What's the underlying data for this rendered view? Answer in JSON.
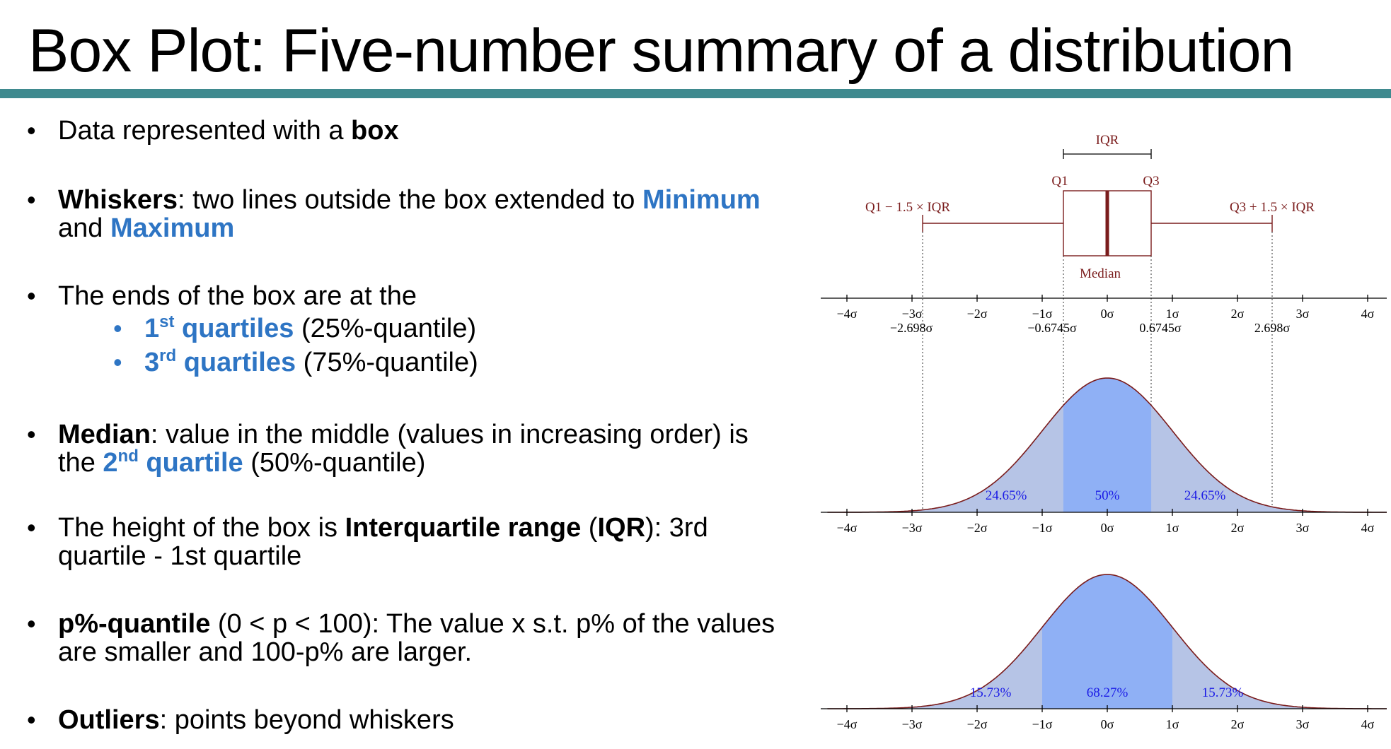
{
  "title": "Box Plot: Five-number summary of a distribution",
  "bullets": {
    "b1": {
      "pre": "Data represented with a ",
      "bold": "box"
    },
    "b2": {
      "bold": "Whiskers",
      "mid": ": two lines outside the box extended to ",
      "min": "Minimum",
      "and": "and ",
      "max": "Maximum"
    },
    "b3": {
      "text": "The ends of the box are at the",
      "sub1": {
        "n": "1",
        "sup": "st",
        "label": " quartiles",
        "rest": " (25%-quantile)"
      },
      "sub2": {
        "n": "3",
        "sup": "rd",
        "label": " quartiles",
        "rest": " (75%-quantile)"
      }
    },
    "b4": {
      "bold": "Median",
      "mid": ": value in the middle (values in increasing order) is",
      "the": "the ",
      "n": "2",
      "sup": "nd",
      "label": " quartile",
      "rest": " (50%-quantile)"
    },
    "b5": {
      "pre": "The height of the box is ",
      "bold1": "Interquartile range",
      "p1": " (",
      "bold2": "IQR",
      "p2": "): 3rd",
      "line2": "quartile - 1st quartile"
    },
    "b6": {
      "bold": "p%-quantile",
      "rest": " (0 < p < 100): The value x s.t. p% of the values",
      "line2": "are smaller and 100-p% are larger."
    },
    "b7": {
      "bold": "Outliers",
      "rest": ": points beyond whiskers"
    }
  },
  "figure": {
    "box_labels": {
      "iqr": "IQR",
      "q1": "Q1",
      "q3": "Q3",
      "lower_fence": "Q1 − 1.5 × IQR",
      "upper_fence": "Q3 + 1.5 × IQR",
      "median": "Median"
    },
    "axis_ticks": [
      "−4σ",
      "−3σ",
      "−2σ",
      "−1σ",
      "0σ",
      "1σ",
      "2σ",
      "3σ",
      "4σ"
    ],
    "marker_values": {
      "lower_fence": "−2.698σ",
      "q1": "−0.6745σ",
      "q3": "0.6745σ",
      "upper_fence": "2.698σ"
    },
    "quartile_percents": {
      "left": "24.65%",
      "center": "50%",
      "right": "24.65%"
    },
    "sigma_percents": {
      "left": "15.73%",
      "center": "68.27%",
      "right": "15.73%"
    },
    "colors": {
      "box": "#7a1c1c",
      "fill_light": "#b6c4e6",
      "fill_dark": "#8fb0f5",
      "percent_text": "#1a1ae6",
      "accent": "#2e75c4"
    }
  }
}
